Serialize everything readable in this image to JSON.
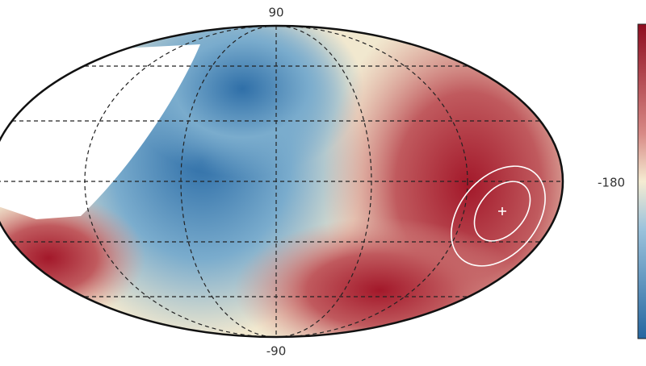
{
  "labels": {
    "top": "90",
    "bottom": "-90",
    "right": "-180"
  }
}
